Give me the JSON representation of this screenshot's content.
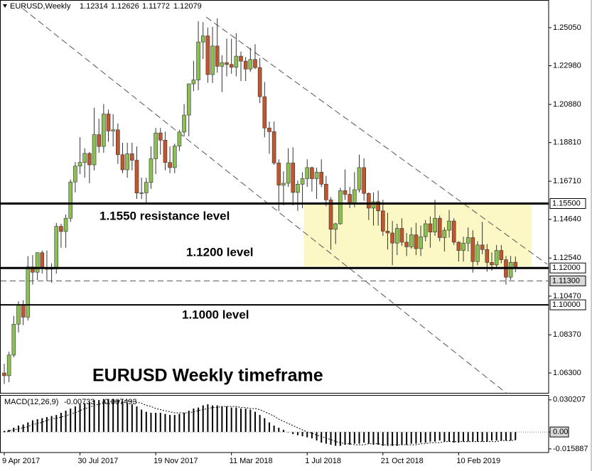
{
  "chart_data": {
    "type": "candlestick",
    "title": "EURUSD,Weekly",
    "categories": [
      "9 Apr 2017",
      null,
      null,
      null,
      null,
      null,
      null,
      null,
      null,
      null,
      null,
      null,
      null,
      null,
      null,
      null,
      "30 Jul 2017",
      null,
      null,
      null,
      null,
      null,
      null,
      null,
      null,
      null,
      null,
      null,
      null,
      null,
      null,
      null,
      "19 Nov 2017",
      null,
      null,
      null,
      null,
      null,
      null,
      null,
      null,
      null,
      null,
      null,
      null,
      null,
      null,
      null,
      "11 Mar 2018",
      null,
      null,
      null,
      null,
      null,
      null,
      null,
      null,
      null,
      null,
      null,
      null,
      null,
      null,
      null,
      "1 Jul 2018",
      null,
      null,
      null,
      null,
      null,
      null,
      null,
      null,
      null,
      null,
      null,
      null,
      null,
      null,
      null,
      "21 Oct 2018",
      null,
      null,
      null,
      null,
      null,
      null,
      null,
      null,
      null,
      null,
      null,
      null,
      null,
      null,
      null,
      "10 Feb 2019",
      null,
      null,
      null,
      null,
      null,
      null,
      null,
      null,
      null,
      null,
      null,
      null
    ],
    "ohlc": [
      [
        1.063,
        1.068,
        1.057,
        1.0615
      ],
      [
        1.0615,
        1.0745,
        1.058,
        1.0727
      ],
      [
        1.0727,
        1.094,
        1.0715,
        1.0895
      ],
      [
        1.0895,
        1.102,
        1.085,
        1.0998
      ],
      [
        1.0998,
        1.1025,
        1.089,
        1.0933
      ],
      [
        1.0933,
        1.1265,
        1.0915,
        1.1206
      ],
      [
        1.1206,
        1.127,
        1.111,
        1.1177
      ],
      [
        1.1177,
        1.1285,
        1.1135,
        1.1283
      ],
      [
        1.1283,
        1.1295,
        1.117,
        1.1196
      ],
      [
        1.1196,
        1.1295,
        1.113,
        1.1197
      ],
      [
        1.1197,
        1.1225,
        1.112,
        1.1195
      ],
      [
        1.1195,
        1.1445,
        1.117,
        1.1426
      ],
      [
        1.1426,
        1.144,
        1.131,
        1.1398
      ],
      [
        1.1398,
        1.149,
        1.131,
        1.147
      ],
      [
        1.147,
        1.168,
        1.145,
        1.1667
      ],
      [
        1.1667,
        1.1775,
        1.161,
        1.1753
      ],
      [
        1.1753,
        1.191,
        1.171,
        1.1773
      ],
      [
        1.1773,
        1.185,
        1.169,
        1.1822
      ],
      [
        1.1822,
        1.183,
        1.166,
        1.176
      ],
      [
        1.176,
        1.207,
        1.173,
        1.1924
      ],
      [
        1.1924,
        1.201,
        1.1825,
        1.186
      ],
      [
        1.186,
        1.209,
        1.1825,
        1.2036
      ],
      [
        1.2036,
        1.206,
        1.1885,
        1.1944
      ],
      [
        1.1944,
        1.2035,
        1.186,
        1.195
      ],
      [
        1.195,
        1.1985,
        1.1765,
        1.1815
      ],
      [
        1.1815,
        1.188,
        1.1715,
        1.1733
      ],
      [
        1.1733,
        1.188,
        1.169,
        1.182
      ],
      [
        1.182,
        1.188,
        1.173,
        1.1785
      ],
      [
        1.1785,
        1.186,
        1.1575,
        1.1607
      ],
      [
        1.1607,
        1.169,
        1.1575,
        1.1608
      ],
      [
        1.1608,
        1.169,
        1.1555,
        1.1665
      ],
      [
        1.1665,
        1.186,
        1.163,
        1.1793
      ],
      [
        1.1793,
        1.196,
        1.171,
        1.1933
      ],
      [
        1.1933,
        1.196,
        1.1815,
        1.1894
      ],
      [
        1.1894,
        1.194,
        1.173,
        1.1773
      ],
      [
        1.1773,
        1.186,
        1.1715,
        1.1745
      ],
      [
        1.1745,
        1.1875,
        1.1715,
        1.1862
      ],
      [
        1.1862,
        1.195,
        1.1835,
        1.1938
      ],
      [
        1.1938,
        1.209,
        1.1915,
        1.203
      ],
      [
        1.203,
        1.22,
        1.1915,
        1.22
      ],
      [
        1.22,
        1.2325,
        1.216,
        1.2221
      ],
      [
        1.2221,
        1.254,
        1.2165,
        1.2427
      ],
      [
        1.2427,
        1.2535,
        1.2335,
        1.246
      ],
      [
        1.246,
        1.2505,
        1.2205,
        1.225
      ],
      [
        1.225,
        1.251,
        1.2205,
        1.2405
      ],
      [
        1.2405,
        1.2555,
        1.226,
        1.2295
      ],
      [
        1.2295,
        1.2355,
        1.2155,
        1.2315
      ],
      [
        1.2315,
        1.2445,
        1.224,
        1.2305
      ],
      [
        1.2305,
        1.2445,
        1.2255,
        1.229
      ],
      [
        1.229,
        1.2475,
        1.224,
        1.235
      ],
      [
        1.235,
        1.2375,
        1.2215,
        1.2323
      ],
      [
        1.2323,
        1.2345,
        1.2215,
        1.228
      ],
      [
        1.228,
        1.2395,
        1.2265,
        1.2332
      ],
      [
        1.2332,
        1.2415,
        1.228,
        1.2288
      ],
      [
        1.2288,
        1.234,
        1.2095,
        1.213
      ],
      [
        1.213,
        1.221,
        1.191,
        1.196
      ],
      [
        1.196,
        1.1995,
        1.182,
        1.194
      ],
      [
        1.194,
        1.1995,
        1.176,
        1.177
      ],
      [
        1.177,
        1.179,
        1.151,
        1.165
      ],
      [
        1.165,
        1.1725,
        1.154,
        1.166
      ],
      [
        1.166,
        1.185,
        1.164,
        1.177
      ],
      [
        1.177,
        1.1855,
        1.154,
        1.161
      ],
      [
        1.161,
        1.1675,
        1.151,
        1.1655
      ],
      [
        1.1655,
        1.172,
        1.1525,
        1.1685
      ],
      [
        1.1685,
        1.179,
        1.164,
        1.1745
      ],
      [
        1.1745,
        1.175,
        1.1615,
        1.1685
      ],
      [
        1.1685,
        1.1745,
        1.1575,
        1.172
      ],
      [
        1.172,
        1.179,
        1.164,
        1.1655
      ],
      [
        1.1655,
        1.17,
        1.1535,
        1.157
      ],
      [
        1.157,
        1.1585,
        1.13,
        1.141
      ],
      [
        1.141,
        1.1445,
        1.133,
        1.144
      ],
      [
        1.144,
        1.1635,
        1.1435,
        1.162
      ],
      [
        1.162,
        1.1735,
        1.157,
        1.16
      ],
      [
        1.16,
        1.164,
        1.1525,
        1.155
      ],
      [
        1.155,
        1.172,
        1.153,
        1.1625
      ],
      [
        1.1625,
        1.1815,
        1.161,
        1.1745
      ],
      [
        1.1745,
        1.1795,
        1.1565,
        1.1605
      ],
      [
        1.1605,
        1.161,
        1.146,
        1.1525
      ],
      [
        1.1525,
        1.161,
        1.143,
        1.156
      ],
      [
        1.156,
        1.162,
        1.143,
        1.151
      ],
      [
        1.151,
        1.157,
        1.1375,
        1.14
      ],
      [
        1.14,
        1.15,
        1.13,
        1.139
      ],
      [
        1.139,
        1.1455,
        1.1215,
        1.1335
      ],
      [
        1.1335,
        1.144,
        1.127,
        1.1415
      ],
      [
        1.1415,
        1.147,
        1.132,
        1.134
      ],
      [
        1.134,
        1.139,
        1.1265,
        1.1315
      ],
      [
        1.1315,
        1.142,
        1.1305,
        1.138
      ],
      [
        1.138,
        1.1445,
        1.127,
        1.1305
      ],
      [
        1.1305,
        1.143,
        1.1265,
        1.137
      ],
      [
        1.137,
        1.146,
        1.1345,
        1.144
      ],
      [
        1.144,
        1.148,
        1.131,
        1.1395
      ],
      [
        1.1395,
        1.157,
        1.1375,
        1.147
      ],
      [
        1.147,
        1.1485,
        1.1345,
        1.1365
      ],
      [
        1.1365,
        1.142,
        1.129,
        1.1405
      ],
      [
        1.1405,
        1.1515,
        1.1365,
        1.1455
      ],
      [
        1.1455,
        1.147,
        1.1325,
        1.134
      ],
      [
        1.134,
        1.1345,
        1.1235,
        1.1295
      ],
      [
        1.1295,
        1.137,
        1.1235,
        1.1335
      ],
      [
        1.1335,
        1.142,
        1.129,
        1.1365
      ],
      [
        1.1365,
        1.1405,
        1.1175,
        1.1235
      ],
      [
        1.1235,
        1.1345,
        1.1215,
        1.1325
      ],
      [
        1.1325,
        1.145,
        1.1275,
        1.13
      ],
      [
        1.13,
        1.133,
        1.118,
        1.123
      ],
      [
        1.123,
        1.1285,
        1.1185,
        1.1217
      ],
      [
        1.1217,
        1.1325,
        1.12,
        1.1295
      ],
      [
        1.1295,
        1.1325,
        1.1225,
        1.1245
      ],
      [
        1.1245,
        1.1265,
        1.111,
        1.115
      ],
      [
        1.115,
        1.1265,
        1.1135,
        1.1231
      ],
      [
        1.12314,
        1.12626,
        1.11772,
        1.12079
      ]
    ],
    "up_color": "#8cc152",
    "down_color": "#c0562e",
    "ylim": [
      1.2655,
      1.0522
    ],
    "yticks": [
      {
        "value": 1.2505,
        "label": "1.25050"
      },
      {
        "value": 1.2298,
        "label": "1.22980"
      },
      {
        "value": 1.2088,
        "label": "1.20880"
      },
      {
        "value": 1.1881,
        "label": "1.18810"
      },
      {
        "value": 1.1671,
        "label": "1.16710"
      },
      {
        "value": 1.1464,
        "label": "1.14640"
      },
      {
        "value": 1.1254,
        "label": "1.12540"
      },
      {
        "value": 1.1047,
        "label": "1.10470"
      },
      {
        "value": 1.0837,
        "label": "1.08370"
      },
      {
        "value": 1.063,
        "label": "1.06300"
      }
    ],
    "levels": [
      {
        "value": 1.155,
        "label": "1.15500",
        "style": "thick"
      },
      {
        "value": 1.12,
        "label": "1.12000",
        "style": "thick"
      },
      {
        "value": 1.113,
        "label": "1.11300",
        "style": "dashed"
      },
      {
        "value": 1.1,
        "label": "1.10000",
        "style": "solid"
      }
    ],
    "annotations": [
      "1.1550 resistance level",
      "1.1200 level",
      "1.1000 level",
      "EURUSD Weekly timeframe"
    ],
    "macd": {
      "type": "bar",
      "name": "MACD(12,26,9)",
      "color": "#000000",
      "histogram": [
        0.001,
        0.002,
        0.004,
        0.006,
        0.007,
        0.009,
        0.011,
        0.012,
        0.013,
        0.014,
        0.015,
        0.016,
        0.018,
        0.02,
        0.022,
        0.024,
        0.026,
        0.027,
        0.028,
        0.03,
        0.03,
        0.031,
        0.031,
        0.031,
        0.03,
        0.029,
        0.027,
        0.026,
        0.024,
        0.021,
        0.019,
        0.018,
        0.018,
        0.018,
        0.017,
        0.016,
        0.016,
        0.017,
        0.018,
        0.02,
        0.022,
        0.023,
        0.025,
        0.026,
        0.025,
        0.025,
        0.024,
        0.024,
        0.023,
        0.023,
        0.022,
        0.022,
        0.021,
        0.019,
        0.016,
        0.013,
        0.009,
        0.006,
        0.004,
        0.002,
        0.0,
        -0.002,
        -0.003,
        -0.004,
        -0.005,
        -0.006,
        -0.008,
        -0.01,
        -0.011,
        -0.012,
        -0.013,
        -0.013,
        -0.012,
        -0.012,
        -0.011,
        -0.011,
        -0.01,
        -0.011,
        -0.012,
        -0.012,
        -0.013,
        -0.013,
        -0.013,
        -0.013,
        -0.012,
        -0.012,
        -0.011,
        -0.011,
        -0.01,
        -0.01,
        -0.009,
        -0.009,
        -0.008,
        -0.009,
        -0.009,
        -0.01,
        -0.01,
        -0.009,
        -0.009,
        -0.009,
        -0.009,
        -0.009,
        -0.009,
        -0.008,
        -0.008,
        -0.008,
        -0.008,
        -0.008,
        -0.00733
      ],
      "signal": [
        0.0,
        0.001,
        0.002,
        0.003,
        0.004,
        0.005,
        0.007,
        0.008,
        0.009,
        0.011,
        0.012,
        0.013,
        0.014,
        0.015,
        0.017,
        0.018,
        0.02,
        0.022,
        0.023,
        0.025,
        0.026,
        0.027,
        0.028,
        0.029,
        0.029,
        0.03,
        0.029,
        0.029,
        0.028,
        0.027,
        0.025,
        0.024,
        0.022,
        0.021,
        0.02,
        0.019,
        0.018,
        0.018,
        0.018,
        0.018,
        0.019,
        0.02,
        0.021,
        0.022,
        0.023,
        0.023,
        0.024,
        0.024,
        0.024,
        0.024,
        0.023,
        0.023,
        0.022,
        0.022,
        0.021,
        0.019,
        0.017,
        0.015,
        0.012,
        0.01,
        0.008,
        0.006,
        0.004,
        0.002,
        0.0,
        -0.001,
        -0.003,
        -0.004,
        -0.006,
        -0.007,
        -0.009,
        -0.01,
        -0.011,
        -0.011,
        -0.012,
        -0.012,
        -0.012,
        -0.011,
        -0.011,
        -0.011,
        -0.012,
        -0.012,
        -0.012,
        -0.012,
        -0.012,
        -0.012,
        -0.012,
        -0.012,
        -0.011,
        -0.011,
        -0.01,
        -0.01,
        -0.01,
        -0.009,
        -0.009,
        -0.009,
        -0.009,
        -0.009,
        -0.009,
        -0.009,
        -0.009,
        -0.009,
        -0.009,
        -0.009,
        -0.009,
        -0.008,
        -0.008,
        -0.008,
        -0.007493
      ],
      "ylim": [
        0.0341,
        -0.0193
      ],
      "yticks": [
        0.030207,
        {
          "value": 0,
          "label": "0.00"
        },
        -0.015887
      ]
    }
  }
}
